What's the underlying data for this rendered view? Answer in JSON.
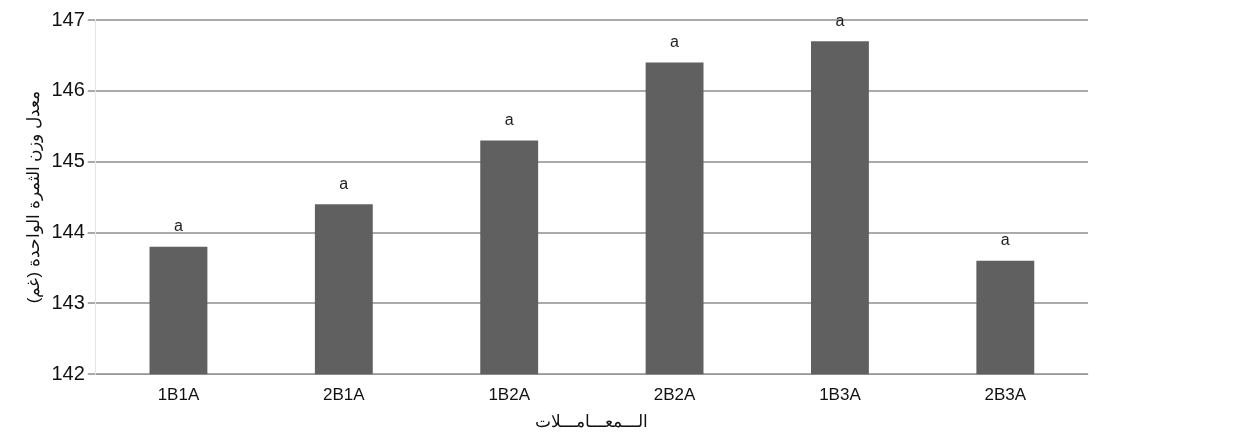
{
  "chart_data": {
    "type": "bar",
    "categories": [
      "1B1A",
      "2B1A",
      "1B2A",
      "2B2A",
      "1B3A",
      "2B3A"
    ],
    "values": [
      143.8,
      144.4,
      145.3,
      146.4,
      146.7,
      143.6
    ],
    "value_labels": [
      "a",
      "a",
      "a",
      "a",
      "a",
      "a"
    ],
    "color": "#606060",
    "xlabel": "الـــمعـــامـــلات",
    "ylabel": "معدل وزن الثمرة الواحدة (غم)",
    "ylim": [
      142,
      147
    ],
    "yticks": [
      142,
      143,
      144,
      145,
      146,
      147
    ],
    "grid": "y",
    "legend": false
  }
}
